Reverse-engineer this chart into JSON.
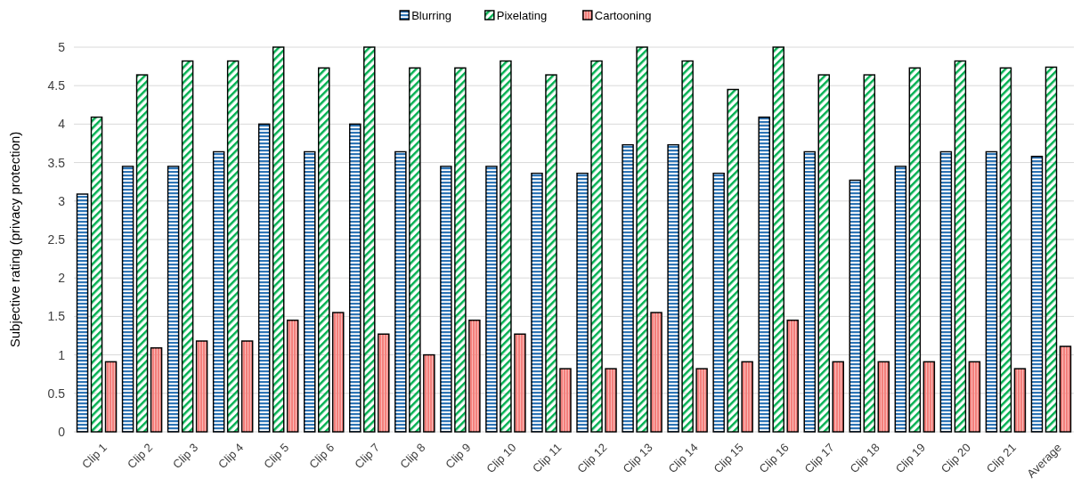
{
  "chart_data": {
    "type": "bar",
    "ylabel": "Subjective rating (privacy protection)",
    "categories": [
      "Clip 1",
      "Clip 2",
      "Clip 3",
      "Clip 4",
      "Clip 5",
      "Clip 6",
      "Clip 7",
      "Clip 8",
      "Clip 9",
      "Clip 10",
      "Clip 11",
      "Clip 12",
      "Clip 13",
      "Clip 14",
      "Clip 15",
      "Clip 16",
      "Clip 17",
      "Clip 18",
      "Clip 19",
      "Clip 20",
      "Clip 21",
      "Average"
    ],
    "series": [
      {
        "name": "Blurring",
        "color": "#2e75b6",
        "values": [
          3.09,
          3.45,
          3.45,
          3.64,
          4,
          3.64,
          4,
          3.64,
          3.45,
          3.45,
          3.36,
          3.36,
          3.73,
          3.73,
          3.36,
          4.09,
          3.64,
          3.27,
          3.45,
          3.64,
          3.64,
          3.58
        ]
      },
      {
        "name": "Pixelating",
        "color": "#00b050",
        "values": [
          4.09,
          4.64,
          4.82,
          4.82,
          5,
          4.73,
          5,
          4.73,
          4.73,
          4.82,
          4.64,
          4.82,
          5,
          4.82,
          4.45,
          5,
          4.64,
          4.64,
          4.73,
          4.82,
          4.73,
          4.74
        ]
      },
      {
        "name": "Cartooning",
        "color": "#f4807c",
        "values": [
          0.91,
          1.09,
          1.18,
          1.18,
          1.45,
          1.55,
          1.27,
          1,
          1.45,
          1.27,
          0.82,
          0.82,
          1.55,
          0.82,
          0.91,
          1.45,
          0.91,
          0.91,
          0.91,
          0.91,
          0.82,
          1.11
        ]
      }
    ],
    "ylim": [
      0,
      5
    ],
    "yticks": [
      0,
      0.5,
      1,
      1.5,
      2,
      2.5,
      3,
      3.5,
      4,
      4.5,
      5
    ],
    "grid": "y",
    "legend": "top"
  }
}
